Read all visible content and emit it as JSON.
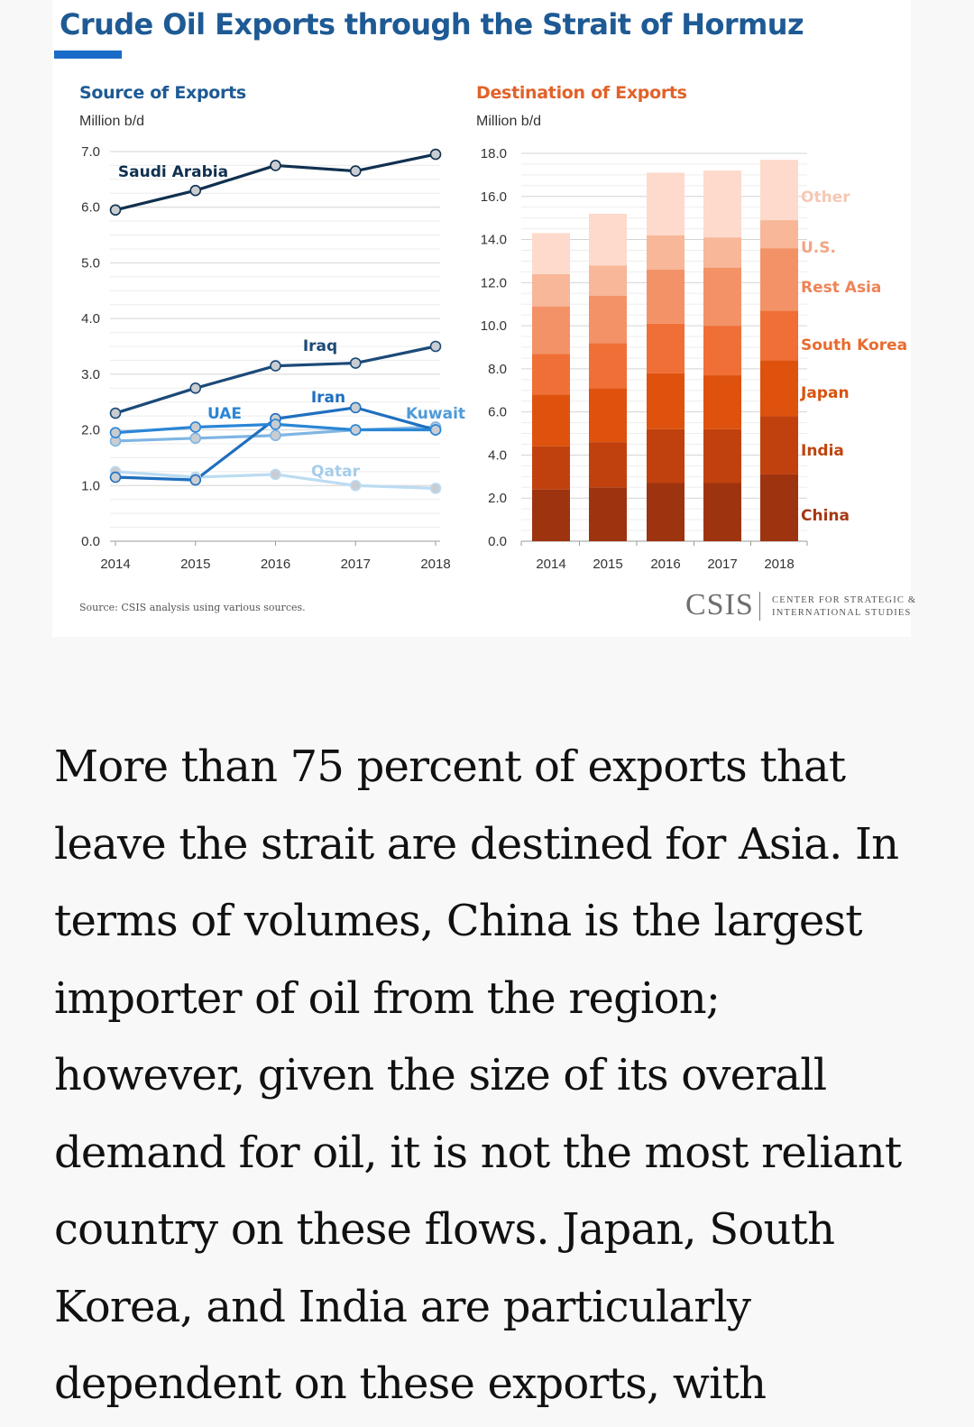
{
  "figure": {
    "title": "Crude Oil Exports through the Strait of Hormuz",
    "source_note": "Source: CSIS analysis using various sources.",
    "logo": {
      "name": "CSIS",
      "full_name_line1": "CENTER FOR STRATEGIC &",
      "full_name_line2": "INTERNATIONAL STUDIES"
    }
  },
  "article": {
    "paragraph": "More than 75 percent of exports that leave the strait are destined for Asia. In terms of volumes, China is the largest importer of oil from the region; however, given the size of its overall demand for oil, it is not the most reliant country on these flows. Japan, South Korea, and India are particularly dependent on these exports, with"
  },
  "colors": {
    "title": "#1e5a94",
    "accent_bar": "#1a6bc7",
    "destination_title": "#e1622a"
  },
  "chart_data": [
    {
      "type": "line",
      "title": "Source of Exports",
      "ylabel": "Million b/d",
      "ylim": [
        0,
        7
      ],
      "yticks": [
        "0.0",
        "1.0",
        "2.0",
        "3.0",
        "4.0",
        "5.0",
        "6.0",
        "7.0"
      ],
      "x": [
        "2014",
        "2015",
        "2016",
        "2017",
        "2018"
      ],
      "grid": true,
      "series": [
        {
          "name": "Saudi Arabia",
          "values": [
            5.95,
            6.3,
            6.75,
            6.65,
            6.95
          ],
          "color": "#10304f"
        },
        {
          "name": "Iraq",
          "values": [
            2.3,
            2.75,
            3.15,
            3.2,
            3.5
          ],
          "color": "#1c4a78"
        },
        {
          "name": "UAE",
          "values": [
            1.95,
            2.05,
            2.1,
            2.0,
            2.0
          ],
          "color": "#2a86d6"
        },
        {
          "name": "Iran",
          "values": [
            1.15,
            1.1,
            2.2,
            2.4,
            2.0
          ],
          "color": "#1f6fbf"
        },
        {
          "name": "Kuwait",
          "values": [
            1.8,
            1.85,
            1.9,
            2.0,
            2.05
          ],
          "color": "#7fb5e3"
        },
        {
          "name": "Qatar",
          "values": [
            1.25,
            1.15,
            1.2,
            1.0,
            0.95
          ],
          "color": "#bcdcf2"
        }
      ]
    },
    {
      "type": "bar",
      "stacked": true,
      "title": "Destination of Exports",
      "ylabel": "Million b/d",
      "ylim": [
        0,
        18
      ],
      "yticks": [
        "0.0",
        "2.0",
        "4.0",
        "6.0",
        "8.0",
        "10.0",
        "12.0",
        "14.0",
        "16.0",
        "18.0"
      ],
      "categories": [
        "2014",
        "2015",
        "2016",
        "2017",
        "2018"
      ],
      "grid": true,
      "series": [
        {
          "name": "China",
          "values": [
            2.4,
            2.5,
            2.7,
            2.7,
            3.1
          ],
          "color": "#9e3310"
        },
        {
          "name": "India",
          "values": [
            2.0,
            2.1,
            2.5,
            2.5,
            2.7
          ],
          "color": "#c0410e"
        },
        {
          "name": "Japan",
          "values": [
            2.4,
            2.5,
            2.6,
            2.5,
            2.6
          ],
          "color": "#de520e"
        },
        {
          "name": "South Korea",
          "values": [
            1.9,
            2.1,
            2.3,
            2.3,
            2.3
          ],
          "color": "#f06f36"
        },
        {
          "name": "Rest Asia",
          "values": [
            2.2,
            2.2,
            2.5,
            2.7,
            2.9
          ],
          "color": "#f39267"
        },
        {
          "name": "U.S.",
          "values": [
            1.5,
            1.4,
            1.6,
            1.4,
            1.3
          ],
          "color": "#f8b798"
        },
        {
          "name": "Other",
          "values": [
            1.9,
            2.4,
            2.9,
            3.1,
            2.8
          ],
          "color": "#fddacb"
        }
      ]
    }
  ]
}
